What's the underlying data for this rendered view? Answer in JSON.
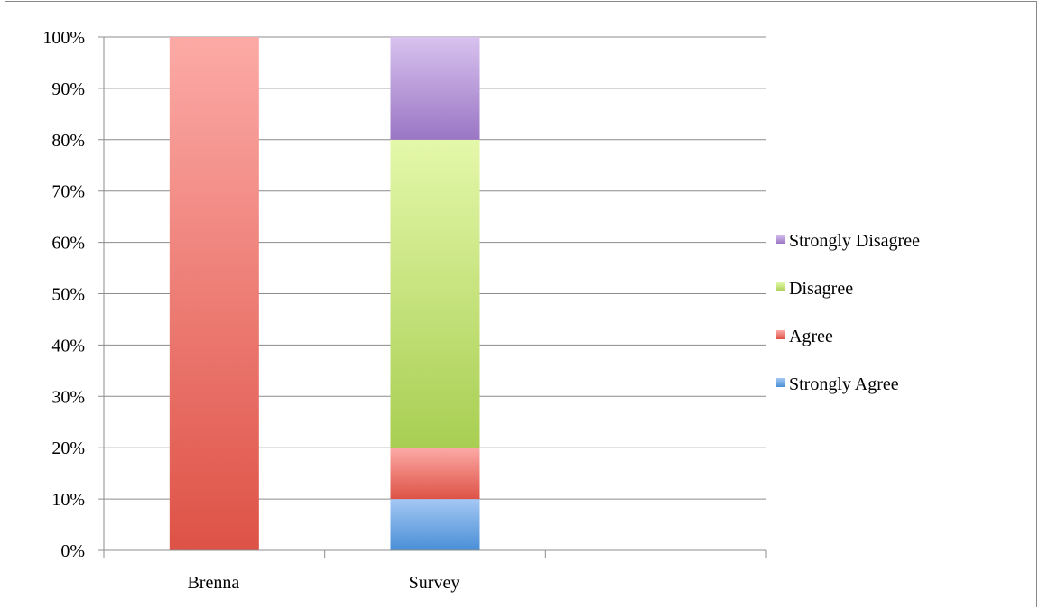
{
  "chart_data": {
    "type": "bar",
    "stacked": true,
    "percent_stacked": true,
    "categories": [
      "Brenna",
      "Survey"
    ],
    "series": [
      {
        "name": "Strongly Agree",
        "values": [
          0,
          10
        ],
        "color_top": "#a4c8f4",
        "color_bottom": "#4a8fd6"
      },
      {
        "name": "Agree",
        "values": [
          100,
          10
        ],
        "color_top": "#fcaaa6",
        "color_bottom": "#de5246"
      },
      {
        "name": "Disagree",
        "values": [
          0,
          60
        ],
        "color_top": "#e4f8aa",
        "color_bottom": "#a8ce52"
      },
      {
        "name": "Strongly Disagree",
        "values": [
          0,
          20
        ],
        "color_top": "#d8c2ef",
        "color_bottom": "#9a76c4"
      }
    ],
    "y_ticks": [
      "0%",
      "10%",
      "20%",
      "30%",
      "40%",
      "50%",
      "60%",
      "70%",
      "80%",
      "90%",
      "100%"
    ],
    "ylim": [
      0,
      100
    ],
    "grid": true,
    "legend_position": "right",
    "title": "",
    "xlabel": "",
    "ylabel": ""
  }
}
